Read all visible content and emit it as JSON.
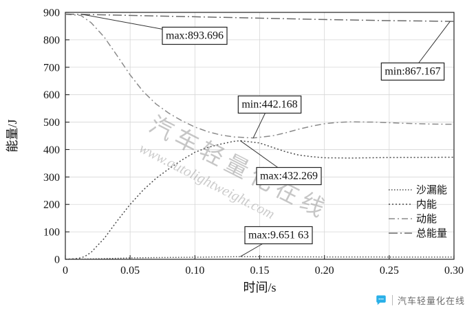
{
  "footer": {
    "brand": "汽车轻量化在线"
  },
  "watermark": {
    "line1": "汽车轻量化在线",
    "line2": "www.autolightweight.com"
  },
  "chart_data": {
    "type": "line",
    "title": "",
    "xlabel": "时间/s",
    "ylabel": "能量/J",
    "xlim": [
      0,
      0.3
    ],
    "ylim": [
      0,
      900
    ],
    "xticks": [
      0,
      0.05,
      0.1,
      0.15,
      0.2,
      0.25,
      0.3
    ],
    "xtick_labels": [
      "0",
      "0.05",
      "0.10",
      "0.15",
      "0.20",
      "0.25",
      "0.30"
    ],
    "yticks": [
      0,
      100,
      200,
      300,
      400,
      500,
      600,
      700,
      800,
      900
    ],
    "ytick_labels": [
      "0",
      "100",
      "200",
      "300",
      "400",
      "500",
      "600",
      "700",
      "800",
      "900"
    ],
    "grid": true,
    "legend_position": "right-inside",
    "legend": [
      "沙漏能",
      "内能",
      "动能",
      "总能量"
    ],
    "series": [
      {
        "name": "沙漏能",
        "style": "dot-fine",
        "color": "#4a4a4a",
        "points": [
          [
            0,
            0
          ],
          [
            0.01,
            0.5
          ],
          [
            0.02,
            1.5
          ],
          [
            0.03,
            2.5
          ],
          [
            0.04,
            3.5
          ],
          [
            0.05,
            5
          ],
          [
            0.06,
            5.8
          ],
          [
            0.08,
            6.8
          ],
          [
            0.1,
            7.6
          ],
          [
            0.12,
            8.8
          ],
          [
            0.135,
            9.65163
          ],
          [
            0.15,
            9.3
          ],
          [
            0.17,
            9.0
          ],
          [
            0.2,
            8.6
          ],
          [
            0.25,
            8.2
          ],
          [
            0.3,
            8.0
          ]
        ]
      },
      {
        "name": "内能",
        "style": "dot",
        "color": "#4a4a4a",
        "points": [
          [
            0,
            0
          ],
          [
            0.01,
            3
          ],
          [
            0.015,
            10
          ],
          [
            0.02,
            26
          ],
          [
            0.03,
            76
          ],
          [
            0.04,
            140
          ],
          [
            0.05,
            200
          ],
          [
            0.06,
            252
          ],
          [
            0.07,
            295
          ],
          [
            0.08,
            330
          ],
          [
            0.09,
            362
          ],
          [
            0.1,
            390
          ],
          [
            0.11,
            408
          ],
          [
            0.12,
            420
          ],
          [
            0.13,
            430
          ],
          [
            0.135,
            432.269
          ],
          [
            0.15,
            424
          ],
          [
            0.16,
            408
          ],
          [
            0.17,
            392
          ],
          [
            0.18,
            380
          ],
          [
            0.19,
            374
          ],
          [
            0.2,
            370
          ],
          [
            0.22,
            369
          ],
          [
            0.25,
            371
          ],
          [
            0.3,
            372
          ]
        ]
      },
      {
        "name": "动能",
        "style": "dashdot",
        "color": "#8a8a8a",
        "points": [
          [
            0,
            893
          ],
          [
            0.012,
            889
          ],
          [
            0.02,
            862
          ],
          [
            0.03,
            810
          ],
          [
            0.04,
            742
          ],
          [
            0.05,
            672
          ],
          [
            0.06,
            612
          ],
          [
            0.07,
            566
          ],
          [
            0.08,
            532
          ],
          [
            0.09,
            505
          ],
          [
            0.1,
            482
          ],
          [
            0.11,
            465
          ],
          [
            0.12,
            453
          ],
          [
            0.13,
            446
          ],
          [
            0.145,
            442.168
          ],
          [
            0.16,
            450
          ],
          [
            0.17,
            461
          ],
          [
            0.18,
            474
          ],
          [
            0.19,
            485
          ],
          [
            0.2,
            494
          ],
          [
            0.21,
            499
          ],
          [
            0.22,
            501
          ],
          [
            0.24,
            500
          ],
          [
            0.26,
            496
          ],
          [
            0.28,
            493
          ],
          [
            0.3,
            492
          ]
        ]
      },
      {
        "name": "总能量",
        "style": "dashdot-long",
        "color": "#6a6a6a",
        "points": [
          [
            0,
            893.696
          ],
          [
            0.03,
            891
          ],
          [
            0.06,
            888
          ],
          [
            0.1,
            884
          ],
          [
            0.15,
            879
          ],
          [
            0.2,
            874
          ],
          [
            0.25,
            870
          ],
          [
            0.3,
            867.167
          ]
        ]
      }
    ],
    "annotations": [
      {
        "id": "max-total",
        "text": "max:893.696",
        "anchor": [
          0.012,
          893.7
        ]
      },
      {
        "id": "min-total",
        "text": "min:867.167",
        "anchor": [
          0.297,
          867.2
        ]
      },
      {
        "id": "min-kinetic",
        "text": "min:442.168",
        "anchor": [
          0.145,
          442.168
        ]
      },
      {
        "id": "max-internal",
        "text": "max:432.269",
        "anchor": [
          0.135,
          432.269
        ]
      },
      {
        "id": "max-hourglass",
        "text": "max:9.651 63",
        "anchor": [
          0.135,
          9.7
        ]
      }
    ]
  }
}
